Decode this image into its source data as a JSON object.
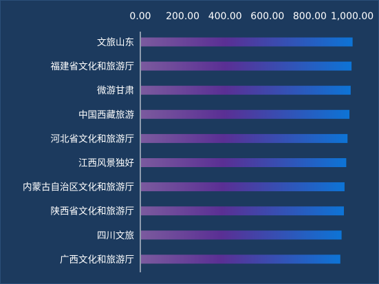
{
  "chart_data": {
    "type": "bar",
    "orientation": "horizontal",
    "axis_position": "top",
    "title": "",
    "xlabel": "",
    "ylabel": "",
    "xlim": [
      0,
      1000
    ],
    "x_ticks": [
      "0.00",
      "200.00",
      "400.00",
      "600.00",
      "800.00",
      "1,000.00"
    ],
    "grid": false,
    "categories": [
      "文旅山东",
      "福建省文化和旅游厅",
      "微游甘肃",
      "中国西藏旅游",
      "河北省文化和旅游厅",
      "江西风景独好",
      "内蒙古自治区文化和旅游厅",
      "陕西省文化和旅游厅",
      "四川文旅",
      "广西文化和旅游厅"
    ],
    "values": [
      1002,
      997,
      993,
      987,
      978,
      972,
      964,
      961,
      950,
      944
    ]
  },
  "colors": {
    "background": "#1c3a5e",
    "border": "#2b4f78",
    "axis_line": "#ffffff",
    "text": "#ffffff",
    "bar_gradient_start": "#7b5a9e",
    "bar_gradient_mid": "#5a2f94",
    "bar_gradient_end": "#0d74d6"
  }
}
